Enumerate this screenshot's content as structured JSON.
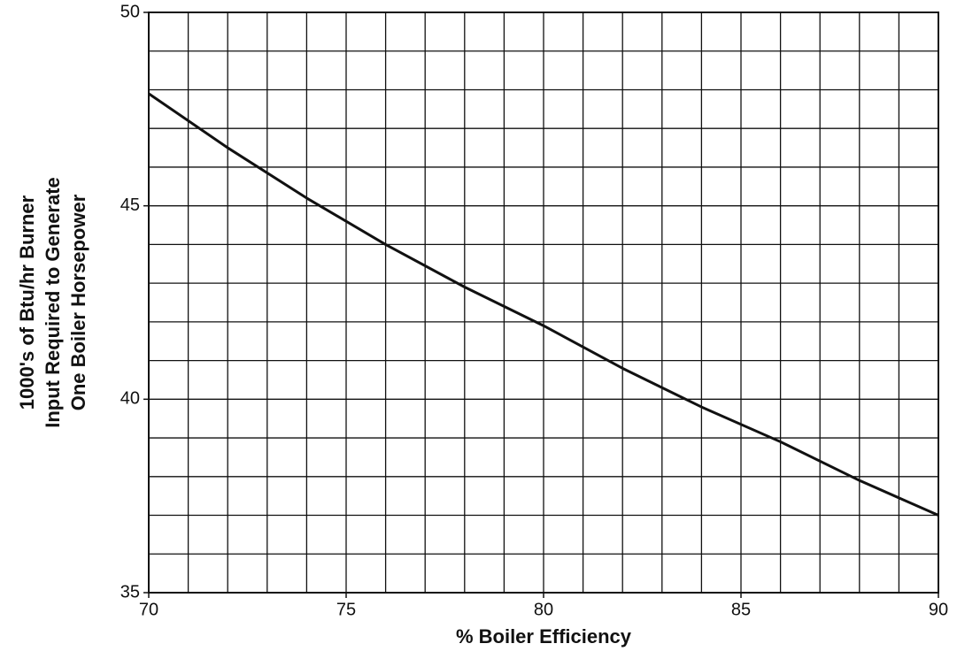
{
  "chart_data": {
    "type": "line",
    "xlabel": "% Boiler Efficiency",
    "ylabel": [
      "1000's of Btu/hr Burner",
      "Input Required to Generate",
      "One Boiler Horsepower"
    ],
    "x": [
      70,
      72,
      74,
      76,
      78,
      80,
      82,
      84,
      86,
      88,
      90
    ],
    "series": [
      {
        "color": "#111111",
        "values": [
          47.9,
          46.5,
          45.2,
          44.0,
          42.9,
          41.9,
          40.8,
          39.8,
          38.9,
          37.9,
          37.0
        ]
      }
    ],
    "xlim": [
      70,
      90
    ],
    "ylim": [
      35,
      50
    ],
    "xticks": [
      70,
      75,
      80,
      85,
      90
    ],
    "yticks": [
      35,
      40,
      45,
      50
    ],
    "xgrid": [
      70,
      71,
      72,
      73,
      74,
      75,
      76,
      77,
      78,
      79,
      80,
      81,
      82,
      83,
      84,
      85,
      86,
      87,
      88,
      89,
      90
    ],
    "ygrid": [
      35,
      36,
      37,
      38,
      39,
      40,
      41,
      42,
      43,
      44,
      45,
      46,
      47,
      48,
      49,
      50
    ],
    "grid": true
  }
}
